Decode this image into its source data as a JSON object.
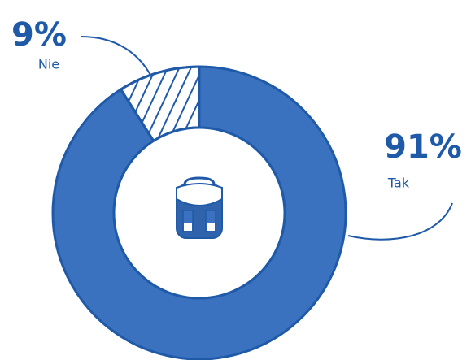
{
  "chart_data": {
    "type": "pie",
    "categories": [
      "Tak",
      "Nie"
    ],
    "values": [
      91,
      9
    ],
    "value_labels": [
      "91%",
      "9%"
    ],
    "colors": [
      "#3b72bf",
      "#ffffff"
    ]
  }
}
